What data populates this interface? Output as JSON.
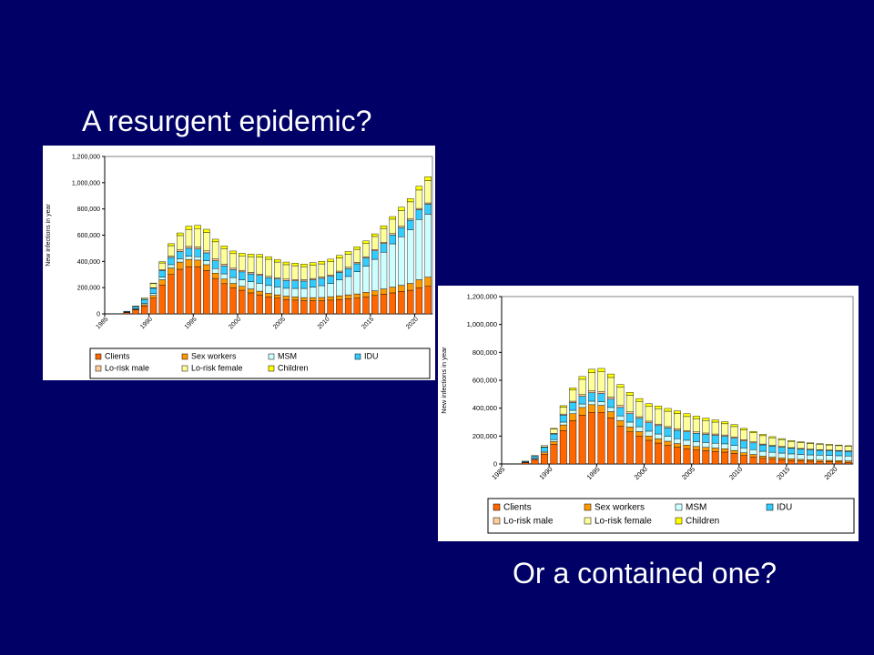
{
  "slide": {
    "title_top": "A resurgent epidemic?",
    "title_bottom": "Or a contained one?",
    "background": "#000066"
  },
  "legend_colors": {
    "Clients": "#ff6600",
    "Sex workers": "#ff9900",
    "MSM": "#ccffff",
    "IDU": "#33ccff",
    "Lo-risk male": "#ffcc99",
    "Lo-risk female": "#ffff99",
    "Children": "#ffff00"
  },
  "chart_data": [
    {
      "type": "bar",
      "stacked": true,
      "ylabel": "New infections in year",
      "xlabel": "",
      "ylim": [
        0,
        1200000
      ],
      "yticks": [
        0,
        200000,
        400000,
        600000,
        800000,
        1000000,
        1200000
      ],
      "ytick_labels": [
        "0",
        "200,000",
        "400,000",
        "600,000",
        "800,000",
        "1,000,000",
        "1,200,000"
      ],
      "xtick_labels": [
        "1985",
        "1990",
        "1995",
        "2000",
        "2005",
        "2010",
        "2015",
        "2020"
      ],
      "categories": [
        1985,
        1986,
        1987,
        1988,
        1989,
        1990,
        1991,
        1992,
        1993,
        1994,
        1995,
        1996,
        1997,
        1998,
        1999,
        2000,
        2001,
        2002,
        2003,
        2004,
        2005,
        2006,
        2007,
        2008,
        2009,
        2010,
        2011,
        2012,
        2013,
        2014,
        2015,
        2016,
        2017,
        2018,
        2019,
        2020,
        2021
      ],
      "legend": [
        "Clients",
        "Sex workers",
        "MSM",
        "IDU",
        "Lo-risk male",
        "Lo-risk female",
        "Children"
      ],
      "series": [
        {
          "name": "Clients",
          "values": [
            0,
            0,
            10000,
            30000,
            60000,
            120000,
            220000,
            300000,
            340000,
            360000,
            360000,
            330000,
            270000,
            230000,
            200000,
            180000,
            160000,
            145000,
            130000,
            120000,
            110000,
            105000,
            100000,
            100000,
            100000,
            105000,
            110000,
            115000,
            120000,
            130000,
            140000,
            150000,
            160000,
            170000,
            180000,
            200000,
            210000
          ]
        },
        {
          "name": "Sex workers",
          "values": [
            0,
            0,
            2000,
            5000,
            10000,
            20000,
            40000,
            50000,
            55000,
            55000,
            50000,
            45000,
            40000,
            35000,
            32000,
            30000,
            30000,
            28000,
            26000,
            25000,
            25000,
            24000,
            24000,
            24000,
            25000,
            26000,
            28000,
            30000,
            32000,
            34000,
            36000,
            40000,
            44000,
            48000,
            52000,
            60000,
            70000
          ]
        },
        {
          "name": "MSM",
          "values": [
            0,
            0,
            3000,
            6000,
            10000,
            15000,
            20000,
            25000,
            25000,
            25000,
            25000,
            30000,
            35000,
            40000,
            45000,
            50000,
            55000,
            60000,
            60000,
            60000,
            60000,
            65000,
            70000,
            80000,
            90000,
            100000,
            120000,
            140000,
            170000,
            200000,
            240000,
            280000,
            330000,
            370000,
            410000,
            460000,
            480000
          ]
        },
        {
          "name": "IDU",
          "values": [
            0,
            0,
            5000,
            15000,
            30000,
            40000,
            50000,
            55000,
            55000,
            60000,
            60000,
            60000,
            60000,
            60000,
            60000,
            60000,
            60000,
            60000,
            60000,
            60000,
            60000,
            58000,
            56000,
            56000,
            56000,
            56000,
            58000,
            60000,
            60000,
            62000,
            64000,
            66000,
            68000,
            70000,
            72000,
            74000,
            76000
          ]
        },
        {
          "name": "Lo-risk male",
          "values": [
            0,
            0,
            0,
            0,
            2000,
            5000,
            8000,
            10000,
            12000,
            14000,
            15000,
            15000,
            14000,
            13000,
            12000,
            12000,
            11000,
            10000,
            10000,
            10000,
            10000,
            10000,
            10000,
            10000,
            10000,
            10000,
            10000,
            10000,
            10000,
            10000,
            10000,
            10000,
            10000,
            10000,
            10000,
            10000,
            10000
          ]
        },
        {
          "name": "Lo-risk female",
          "values": [
            0,
            0,
            0,
            5000,
            10000,
            30000,
            50000,
            80000,
            110000,
            130000,
            140000,
            140000,
            130000,
            120000,
            110000,
            110000,
            120000,
            130000,
            130000,
            120000,
            110000,
            105000,
            100000,
            100000,
            100000,
            100000,
            100000,
            100000,
            100000,
            100000,
            100000,
            105000,
            110000,
            120000,
            130000,
            140000,
            170000
          ]
        },
        {
          "name": "Children",
          "values": [
            0,
            0,
            0,
            0,
            0,
            5000,
            10000,
            15000,
            20000,
            25000,
            25000,
            25000,
            20000,
            20000,
            20000,
            20000,
            20000,
            20000,
            20000,
            20000,
            20000,
            20000,
            20000,
            20000,
            20000,
            20000,
            20000,
            20000,
            20000,
            20000,
            20000,
            20000,
            20000,
            25000,
            25000,
            30000,
            30000
          ]
        }
      ]
    },
    {
      "type": "bar",
      "stacked": true,
      "ylabel": "New infections in year",
      "xlabel": "",
      "ylim": [
        0,
        1200000
      ],
      "yticks": [
        0,
        200000,
        400000,
        600000,
        800000,
        1000000,
        1200000
      ],
      "ytick_labels": [
        "0",
        "200,000",
        "400,000",
        "600,000",
        "800,000",
        "1,000,000",
        "1,200,000"
      ],
      "xtick_labels": [
        "1985",
        "1990",
        "1995",
        "2000",
        "2005",
        "2010",
        "2015",
        "2020"
      ],
      "categories": [
        1985,
        1986,
        1987,
        1988,
        1989,
        1990,
        1991,
        1992,
        1993,
        1994,
        1995,
        1996,
        1997,
        1998,
        1999,
        2000,
        2001,
        2002,
        2003,
        2004,
        2005,
        2006,
        2007,
        2008,
        2009,
        2010,
        2011,
        2012,
        2013,
        2014,
        2015,
        2016,
        2017,
        2018,
        2019,
        2020,
        2021
      ],
      "legend": [
        "Clients",
        "Sex workers",
        "MSM",
        "IDU",
        "Lo-risk male",
        "Lo-risk female",
        "Children"
      ],
      "series": [
        {
          "name": "Clients",
          "values": [
            0,
            0,
            10000,
            30000,
            70000,
            140000,
            240000,
            310000,
            350000,
            370000,
            370000,
            330000,
            270000,
            230000,
            200000,
            170000,
            150000,
            135000,
            120000,
            110000,
            100000,
            95000,
            90000,
            85000,
            75000,
            60000,
            50000,
            40000,
            35000,
            30000,
            25000,
            22000,
            20000,
            18000,
            16000,
            14000,
            12000
          ]
        },
        {
          "name": "Sex workers",
          "values": [
            0,
            0,
            2000,
            5000,
            10000,
            20000,
            40000,
            50000,
            55000,
            55000,
            50000,
            45000,
            40000,
            35000,
            32000,
            30000,
            30000,
            28000,
            26000,
            25000,
            25000,
            24000,
            24000,
            24000,
            22000,
            20000,
            18000,
            16000,
            14000,
            13000,
            12000,
            11000,
            10000,
            10000,
            10000,
            10000,
            10000
          ]
        },
        {
          "name": "MSM",
          "values": [
            0,
            0,
            3000,
            6000,
            10000,
            15000,
            20000,
            25000,
            25000,
            25000,
            25000,
            30000,
            35000,
            35000,
            35000,
            35000,
            35000,
            35000,
            35000,
            35000,
            35000,
            35000,
            35000,
            35000,
            35000,
            35000,
            35000,
            35000,
            35000,
            35000,
            35000,
            35000,
            35000,
            35000,
            35000,
            35000,
            35000
          ]
        },
        {
          "name": "IDU",
          "values": [
            0,
            0,
            5000,
            15000,
            30000,
            40000,
            50000,
            55000,
            55000,
            60000,
            60000,
            60000,
            60000,
            60000,
            60000,
            60000,
            60000,
            60000,
            60000,
            60000,
            60000,
            58000,
            56000,
            54000,
            52000,
            50000,
            48000,
            46000,
            44000,
            42000,
            40000,
            38000,
            36000,
            35000,
            34000,
            33000,
            32000
          ]
        },
        {
          "name": "Lo-risk male",
          "values": [
            0,
            0,
            0,
            0,
            2000,
            5000,
            8000,
            10000,
            12000,
            14000,
            15000,
            15000,
            14000,
            13000,
            12000,
            12000,
            11000,
            10000,
            10000,
            10000,
            10000,
            10000,
            10000,
            10000,
            9000,
            8000,
            7000,
            6000,
            5000,
            5000,
            5000,
            5000,
            5000,
            5000,
            5000,
            5000,
            5000
          ]
        },
        {
          "name": "Lo-risk female",
          "values": [
            0,
            0,
            0,
            5000,
            10000,
            30000,
            50000,
            80000,
            110000,
            130000,
            140000,
            140000,
            130000,
            120000,
            110000,
            105000,
            110000,
            110000,
            110000,
            100000,
            95000,
            90000,
            85000,
            80000,
            75000,
            70000,
            65000,
            60000,
            55000,
            50000,
            45000,
            42000,
            40000,
            38000,
            36000,
            34000,
            32000
          ]
        },
        {
          "name": "Children",
          "values": [
            0,
            0,
            0,
            0,
            0,
            5000,
            10000,
            15000,
            20000,
            25000,
            25000,
            25000,
            20000,
            20000,
            20000,
            20000,
            20000,
            20000,
            20000,
            20000,
            18000,
            17000,
            16000,
            15000,
            14000,
            12000,
            10000,
            9000,
            8000,
            7000,
            6000,
            6000,
            5000,
            5000,
            5000,
            5000,
            5000
          ]
        }
      ]
    }
  ]
}
